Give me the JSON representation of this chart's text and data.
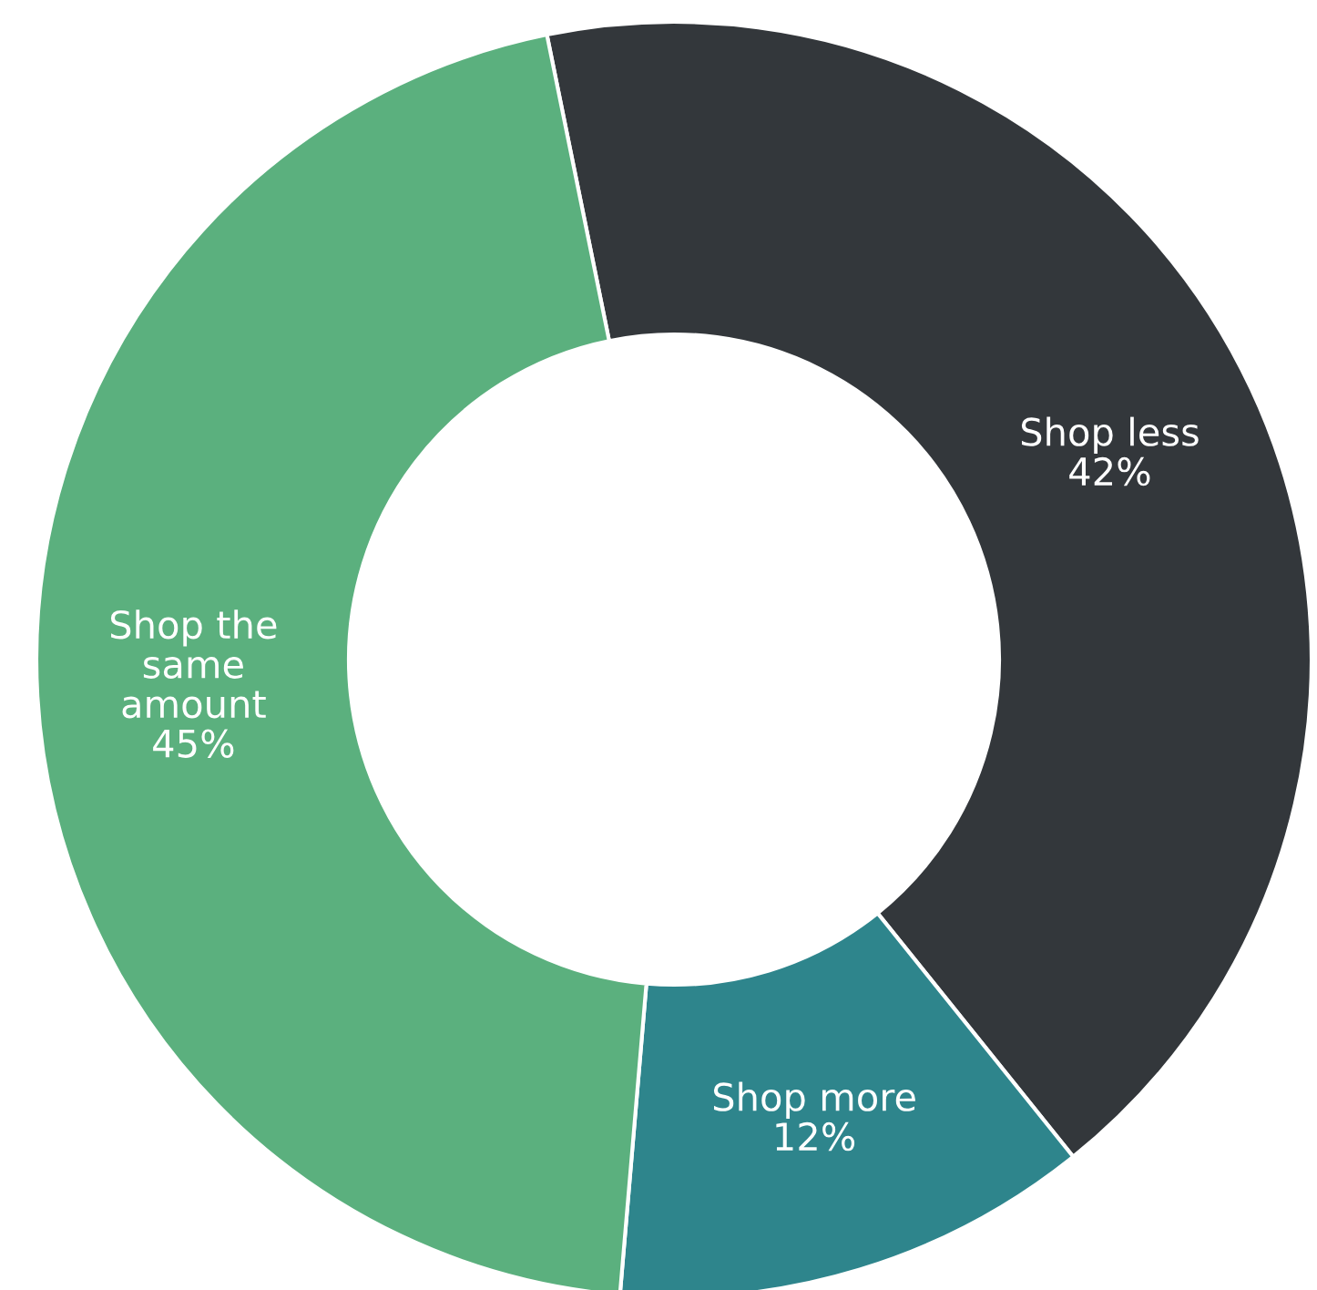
{
  "chart_data": {
    "type": "donut",
    "categories": [
      "Shop less",
      "Shop more",
      "Shop the\nsame\namount"
    ],
    "values": [
      42,
      12,
      45
    ],
    "colors": [
      "#33373b",
      "#2e858c",
      "#5bb07e"
    ],
    "value_labels": [
      "42%",
      "12%",
      "45%"
    ],
    "legend": false
  }
}
